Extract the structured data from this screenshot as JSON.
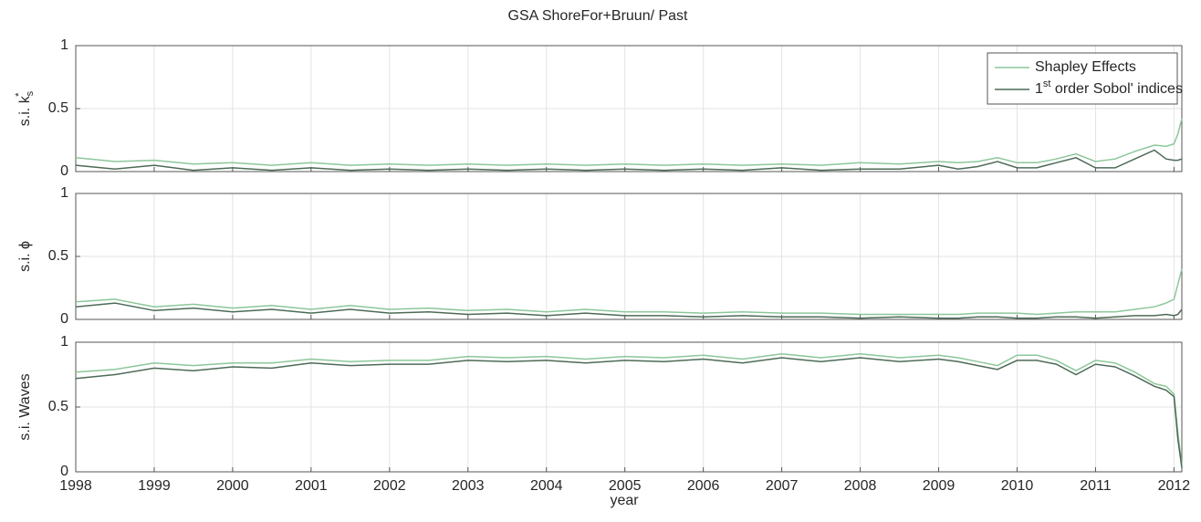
{
  "chart_data": [
    {
      "type": "line",
      "title": "GSA ShoreFor+Bruun/ Past",
      "ylabel": "s.i. k",
      "ylabel_sub": "s",
      "ylabel_sup": "*",
      "legend": "upper right",
      "grid": true,
      "x": [
        1998,
        1998.5,
        1999,
        1999.5,
        2000,
        2000.5,
        2001,
        2001.5,
        2002,
        2002.5,
        2003,
        2003.5,
        2004,
        2004.5,
        2005,
        2005.5,
        2006,
        2006.5,
        2007,
        2007.5,
        2008,
        2008.5,
        2009,
        2009.25,
        2009.5,
        2009.75,
        2010,
        2010.25,
        2010.5,
        2010.75,
        2011,
        2011.25,
        2011.5,
        2011.75,
        2011.9,
        2012,
        2012.05,
        2012.1
      ],
      "xlim": [
        1998,
        2012.1
      ],
      "xticks": [
        1998,
        1999,
        2000,
        2001,
        2002,
        2003,
        2004,
        2005,
        2006,
        2007,
        2008,
        2009,
        2010,
        2011,
        2012
      ],
      "ylim": [
        0,
        1
      ],
      "yticks": [
        0,
        0.5,
        1
      ],
      "series": [
        {
          "name": "Shapley Effects",
          "color": "#8cc79a",
          "values": [
            0.11,
            0.08,
            0.09,
            0.06,
            0.07,
            0.05,
            0.07,
            0.05,
            0.06,
            0.05,
            0.06,
            0.05,
            0.06,
            0.05,
            0.06,
            0.05,
            0.06,
            0.05,
            0.06,
            0.05,
            0.07,
            0.06,
            0.08,
            0.07,
            0.08,
            0.11,
            0.07,
            0.07,
            0.1,
            0.14,
            0.08,
            0.1,
            0.16,
            0.21,
            0.2,
            0.22,
            0.3,
            0.42
          ]
        },
        {
          "name": "1st order Sobol' indices",
          "color": "#4d6b57",
          "values": [
            0.05,
            0.02,
            0.05,
            0.01,
            0.03,
            0.01,
            0.03,
            0.01,
            0.02,
            0.01,
            0.02,
            0.01,
            0.02,
            0.01,
            0.02,
            0.01,
            0.02,
            0.01,
            0.03,
            0.01,
            0.02,
            0.02,
            0.05,
            0.02,
            0.04,
            0.08,
            0.03,
            0.03,
            0.07,
            0.11,
            0.03,
            0.03,
            0.1,
            0.17,
            0.1,
            0.09,
            0.09,
            0.1
          ]
        }
      ]
    },
    {
      "type": "line",
      "ylabel": "s.i. ϕ",
      "grid": true,
      "x": [
        1998,
        1998.5,
        1999,
        1999.5,
        2000,
        2000.5,
        2001,
        2001.5,
        2002,
        2002.5,
        2003,
        2003.5,
        2004,
        2004.5,
        2005,
        2005.5,
        2006,
        2006.5,
        2007,
        2007.5,
        2008,
        2008.5,
        2009,
        2009.25,
        2009.5,
        2009.75,
        2010,
        2010.25,
        2010.5,
        2010.75,
        2011,
        2011.25,
        2011.5,
        2011.75,
        2011.9,
        2012,
        2012.05,
        2012.1
      ],
      "xlim": [
        1998,
        2012.1
      ],
      "xticks": [
        1998,
        1999,
        2000,
        2001,
        2002,
        2003,
        2004,
        2005,
        2006,
        2007,
        2008,
        2009,
        2010,
        2011,
        2012
      ],
      "ylim": [
        0,
        1
      ],
      "yticks": [
        0,
        0.5,
        1
      ],
      "series": [
        {
          "color": "#8cc79a",
          "values": [
            0.14,
            0.16,
            0.1,
            0.12,
            0.09,
            0.11,
            0.08,
            0.11,
            0.08,
            0.09,
            0.07,
            0.08,
            0.06,
            0.08,
            0.06,
            0.06,
            0.05,
            0.06,
            0.05,
            0.05,
            0.04,
            0.04,
            0.04,
            0.04,
            0.05,
            0.05,
            0.05,
            0.04,
            0.05,
            0.06,
            0.06,
            0.06,
            0.08,
            0.1,
            0.13,
            0.16,
            0.28,
            0.4
          ]
        },
        {
          "color": "#4d6b57",
          "values": [
            0.1,
            0.13,
            0.07,
            0.09,
            0.06,
            0.08,
            0.05,
            0.08,
            0.05,
            0.06,
            0.04,
            0.05,
            0.03,
            0.05,
            0.03,
            0.03,
            0.02,
            0.03,
            0.02,
            0.02,
            0.01,
            0.02,
            0.01,
            0.01,
            0.02,
            0.02,
            0.01,
            0.01,
            0.02,
            0.02,
            0.01,
            0.02,
            0.03,
            0.03,
            0.04,
            0.03,
            0.04,
            0.08
          ]
        }
      ]
    },
    {
      "type": "line",
      "ylabel": "s.i. Waves",
      "xlabel": "year",
      "grid": true,
      "x": [
        1998,
        1998.5,
        1999,
        1999.5,
        2000,
        2000.5,
        2001,
        2001.5,
        2002,
        2002.5,
        2003,
        2003.5,
        2004,
        2004.5,
        2005,
        2005.5,
        2006,
        2006.5,
        2007,
        2007.5,
        2008,
        2008.5,
        2009,
        2009.25,
        2009.5,
        2009.75,
        2010,
        2010.25,
        2010.5,
        2010.75,
        2011,
        2011.25,
        2011.5,
        2011.75,
        2011.9,
        2012,
        2012.05,
        2012.1
      ],
      "xlim": [
        1998,
        2012.1
      ],
      "xticks": [
        1998,
        1999,
        2000,
        2001,
        2002,
        2003,
        2004,
        2005,
        2006,
        2007,
        2008,
        2009,
        2010,
        2011,
        2012
      ],
      "ylim": [
        0,
        1
      ],
      "yticks": [
        0,
        0.5,
        1
      ],
      "series": [
        {
          "color": "#8cc79a",
          "values": [
            0.77,
            0.79,
            0.84,
            0.82,
            0.84,
            0.84,
            0.87,
            0.85,
            0.86,
            0.86,
            0.89,
            0.88,
            0.89,
            0.87,
            0.89,
            0.88,
            0.9,
            0.87,
            0.91,
            0.88,
            0.91,
            0.88,
            0.9,
            0.88,
            0.85,
            0.82,
            0.9,
            0.9,
            0.86,
            0.78,
            0.86,
            0.84,
            0.77,
            0.68,
            0.66,
            0.6,
            0.3,
            0.05
          ]
        },
        {
          "color": "#4d6b57",
          "values": [
            0.72,
            0.75,
            0.8,
            0.78,
            0.81,
            0.8,
            0.84,
            0.82,
            0.83,
            0.83,
            0.86,
            0.85,
            0.86,
            0.84,
            0.86,
            0.85,
            0.87,
            0.84,
            0.88,
            0.85,
            0.88,
            0.85,
            0.87,
            0.85,
            0.82,
            0.79,
            0.86,
            0.86,
            0.83,
            0.75,
            0.83,
            0.81,
            0.74,
            0.66,
            0.63,
            0.58,
            0.25,
            0.03
          ]
        }
      ]
    }
  ]
}
